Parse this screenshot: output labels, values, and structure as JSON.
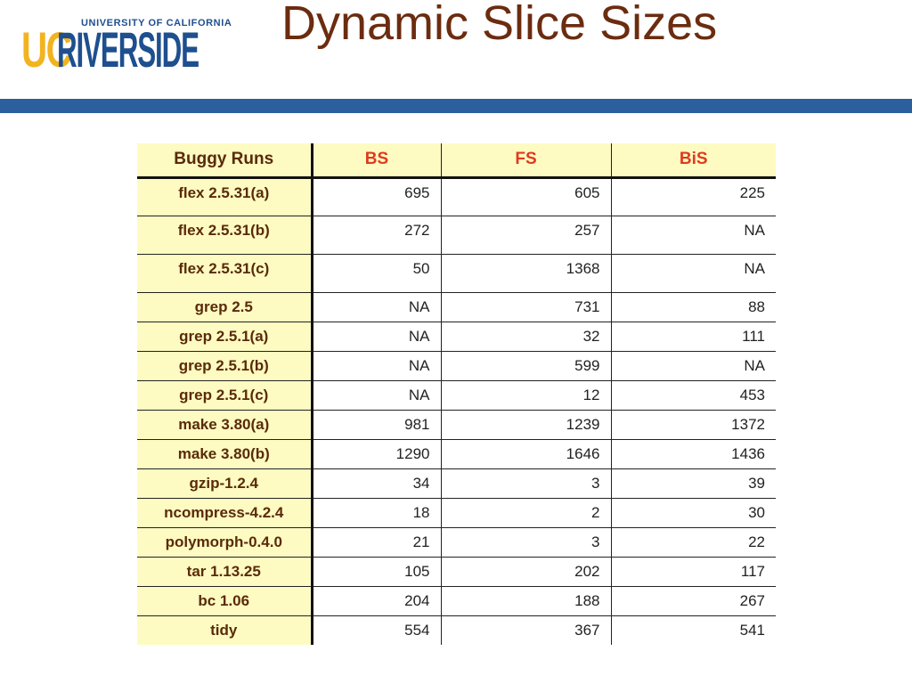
{
  "logo": {
    "top_text": "UNIVERSITY OF CALIFORNIA",
    "uc": "UC",
    "riverside": "RIVERSIDE"
  },
  "title": "Dynamic Slice Sizes",
  "colors": {
    "title": "#6b2c0f",
    "bar": "#2b5f9e",
    "header_bg": "#fdfbc2",
    "highlight": "#e03a1e"
  },
  "table": {
    "headers": [
      "Buggy Runs",
      "BS",
      "FS",
      "BiS"
    ],
    "rows": [
      {
        "label": "flex 2.5.31(a)",
        "bs": "695",
        "fs": "605",
        "bis": "225",
        "highlight": "bis",
        "big": true
      },
      {
        "label": "flex 2.5.31(b)",
        "bs": "272",
        "fs": "257",
        "bis": "NA",
        "highlight": "fs",
        "big": true
      },
      {
        "label": "flex 2.5.31(c)",
        "bs": "50",
        "fs": "1368",
        "bis": "NA",
        "highlight": "bs",
        "big": true
      },
      {
        "label": "grep 2.5",
        "bs": "NA",
        "fs": "731",
        "bis": "88",
        "highlight": "bis",
        "big": false
      },
      {
        "label": "grep 2.5.1(a)",
        "bs": "NA",
        "fs": "32",
        "bis": "111",
        "highlight": "fs",
        "big": false
      },
      {
        "label": "grep 2.5.1(b)",
        "bs": "NA",
        "fs": "599",
        "bis": "NA",
        "highlight": "",
        "big": false
      },
      {
        "label": "grep 2.5.1(c)",
        "bs": "NA",
        "fs": "12",
        "bis": "453",
        "highlight": "fs",
        "big": false
      },
      {
        "label": "make 3.80(a)",
        "bs": "981",
        "fs": "1239",
        "bis": "1372",
        "highlight": "",
        "big": false
      },
      {
        "label": "make 3.80(b)",
        "bs": "1290",
        "fs": "1646",
        "bis": "1436",
        "highlight": "",
        "big": false
      },
      {
        "label": "gzip-1.2.4",
        "bs": "34",
        "fs": "3",
        "bis": "39",
        "highlight": "fs",
        "big": false
      },
      {
        "label": "ncompress-4.2.4",
        "bs": "18",
        "fs": "2",
        "bis": "30",
        "highlight": "fs",
        "big": false
      },
      {
        "label": "polymorph-0.4.0",
        "bs": "21",
        "fs": "3",
        "bis": "22",
        "highlight": "fs",
        "big": false
      },
      {
        "label": "tar 1.13.25",
        "bs": "105",
        "fs": "202",
        "bis": "117",
        "highlight": "bs",
        "big": false
      },
      {
        "label": "bc 1.06",
        "bs": "204",
        "fs": "188",
        "bis": "267",
        "highlight": "",
        "big": false
      },
      {
        "label": "tidy",
        "bs": "554",
        "fs": "367",
        "bis": "541",
        "highlight": "fs",
        "big": false
      }
    ]
  }
}
